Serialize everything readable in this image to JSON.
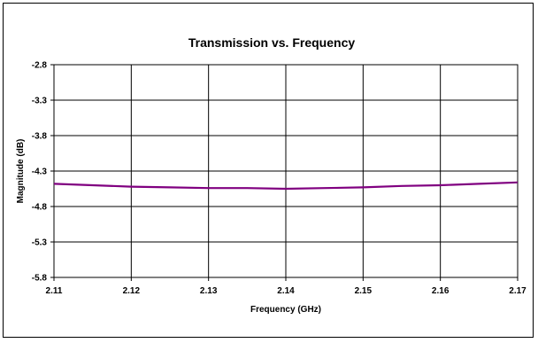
{
  "chart_data": {
    "type": "line",
    "title": "Transmission vs. Frequency",
    "xlabel": "Frequency (GHz)",
    "ylabel": "Magnitude (dB)",
    "xlim": [
      2.11,
      2.17
    ],
    "ylim": [
      -5.8,
      -2.8
    ],
    "xticks": [
      "2.11",
      "2.12",
      "2.13",
      "2.14",
      "2.15",
      "2.16",
      "2.17"
    ],
    "yticks": [
      "-2.8",
      "-3.3",
      "-3.8",
      "-4.3",
      "-4.8",
      "-5.3",
      "-5.8"
    ],
    "grid": true,
    "line_color": "#800080",
    "series": [
      {
        "x": [
          2.11,
          2.115,
          2.12,
          2.125,
          2.13,
          2.135,
          2.14,
          2.145,
          2.15,
          2.155,
          2.16,
          2.165,
          2.17
        ],
        "y": [
          -4.48,
          -4.5,
          -4.52,
          -4.53,
          -4.54,
          -4.54,
          -4.55,
          -4.54,
          -4.53,
          -4.51,
          -4.5,
          -4.48,
          -4.46
        ]
      }
    ]
  }
}
